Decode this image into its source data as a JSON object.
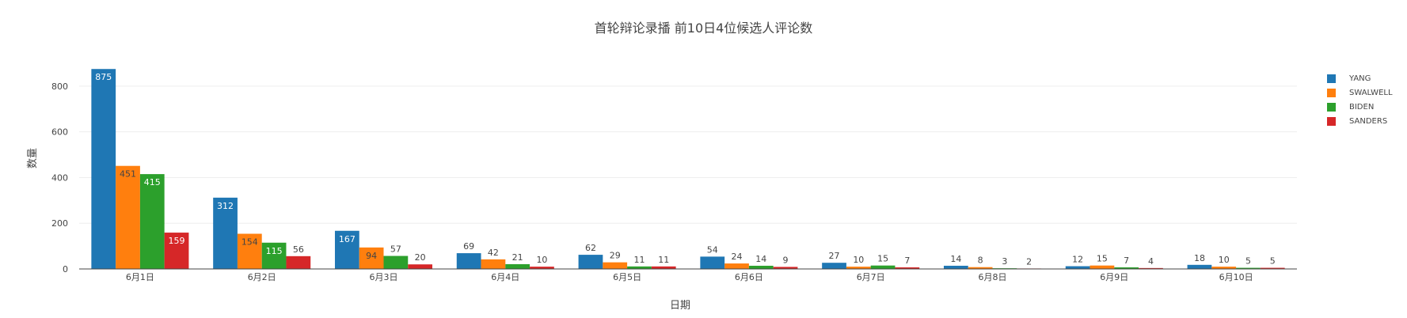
{
  "chart_data": {
    "type": "bar",
    "title": "首轮辩论录播 前10日4位候选人评论数",
    "xlabel": "日期",
    "ylabel": "数量",
    "ylim": [
      0,
      900
    ],
    "yticks": [
      0,
      200,
      400,
      600,
      800
    ],
    "grid": true,
    "legend_position": "top-right",
    "categories": [
      "6月1日",
      "6月2日",
      "6月3日",
      "6月4日",
      "6月5日",
      "6月6日",
      "6月7日",
      "6月8日",
      "6月9日",
      "6月10日"
    ],
    "series": [
      {
        "name": "YANG",
        "color": "#1f77b4",
        "values": [
          875,
          312,
          167,
          69,
          62,
          54,
          27,
          14,
          12,
          18
        ]
      },
      {
        "name": "SWALWELL",
        "color": "#ff7f0e",
        "values": [
          451,
          154,
          94,
          42,
          29,
          24,
          10,
          8,
          15,
          10
        ]
      },
      {
        "name": "BIDEN",
        "color": "#2ca02c",
        "values": [
          415,
          115,
          57,
          21,
          11,
          14,
          15,
          3,
          7,
          5
        ]
      },
      {
        "name": "SANDERS",
        "color": "#d62728",
        "values": [
          159,
          56,
          20,
          10,
          11,
          9,
          7,
          2,
          4,
          5
        ]
      }
    ]
  }
}
